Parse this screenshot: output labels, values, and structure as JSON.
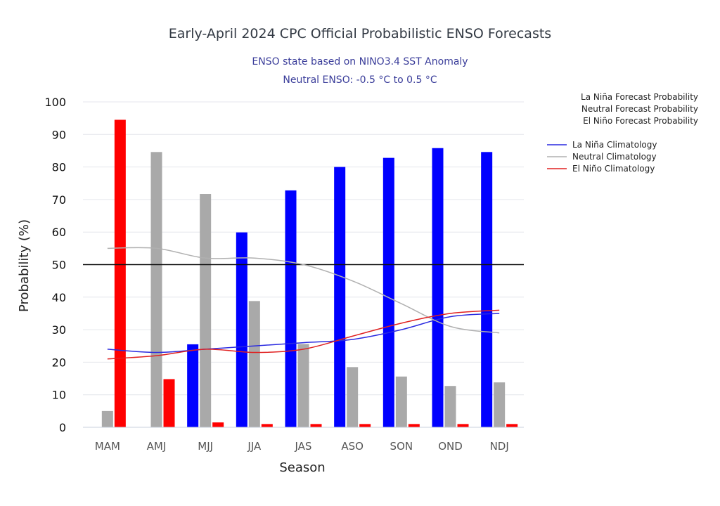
{
  "chart_data": {
    "type": "bar",
    "title": "Early-April 2024 CPC Official Probabilistic ENSO Forecasts",
    "subtitle": [
      "ENSO state based on NINO3.4 SST Anomaly",
      "Neutral ENSO: -0.5 °C to 0.5 °C"
    ],
    "xlabel": "Season",
    "ylabel": "Probability (%)",
    "ylim": [
      0,
      100
    ],
    "yticks": [
      "0",
      "10",
      "20",
      "30",
      "40",
      "50",
      "60",
      "70",
      "80",
      "90",
      "100"
    ],
    "reference_line": 50,
    "categories": [
      "MAM",
      "AMJ",
      "MJJ",
      "JJA",
      "JAS",
      "ASO",
      "SON",
      "OND",
      "NDJ"
    ],
    "series": [
      {
        "name": "La Niña Forecast Probability",
        "color": "#0000ff",
        "values": [
          0,
          0,
          25.5,
          59.9,
          72.8,
          80,
          82.8,
          85.8,
          84.6
        ]
      },
      {
        "name": "Neutral Forecast Probability",
        "color": "#a9a9a9",
        "values": [
          5,
          84.6,
          71.7,
          38.8,
          25.6,
          18.5,
          15.6,
          12.7,
          13.8
        ]
      },
      {
        "name": "El Niño Forecast Probability",
        "color": "#ff0000",
        "values": [
          94.5,
          14.8,
          1.5,
          1,
          1,
          1,
          1,
          1,
          1
        ]
      }
    ],
    "climatology": [
      {
        "name": "La Niña Climatology",
        "color": "#2a2ae0",
        "values": [
          24,
          23,
          24,
          25,
          26,
          27,
          30,
          34,
          35
        ]
      },
      {
        "name": "Neutral Climatology",
        "color": "#b0b0b0",
        "values": [
          55,
          55,
          52,
          52,
          50,
          45,
          38,
          31,
          29
        ]
      },
      {
        "name": "El Niño Climatology",
        "color": "#e02020",
        "values": [
          21,
          22,
          24,
          23,
          24,
          28,
          32,
          35,
          36
        ]
      }
    ]
  }
}
